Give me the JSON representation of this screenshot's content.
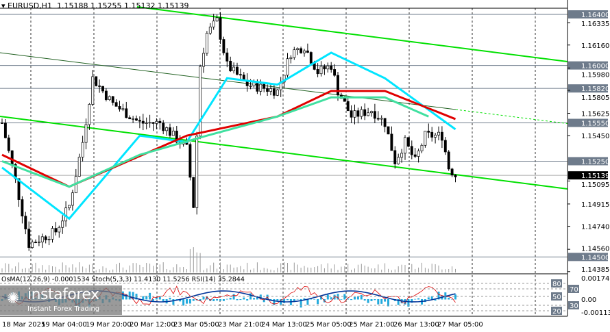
{
  "header": {
    "symbol": "EURUSD,H1",
    "open": "1.15188",
    "high": "1.15255",
    "low": "1.15132",
    "close": "1.15139"
  },
  "indicators_label": "OsMA(12,26,9) -0.0001534  Stoch(5,3,3) 11.4130 11.5256  RSI(14) 35.2844",
  "logo": {
    "name": "instaforex",
    "tagline": "Instant Forex Trading"
  },
  "colors": {
    "trendline": "#00e000",
    "ma_fast": "#00e5ff",
    "ma_slow": "#e00000",
    "ma_mid": "#40e0a0",
    "level_label_bg": "#6e7b8b",
    "price_label_bg": "#000000"
  },
  "chart_data": {
    "type": "candlestick",
    "timeframe": "H1",
    "ylim": [
      1.14385,
      1.164
    ],
    "price_ticks": [
      "1.16335",
      "1.16160",
      "1.15980",
      "1.15805",
      "1.15625",
      "1.15450",
      "1.15095",
      "1.14915",
      "1.14740",
      "1.14560",
      "1.14385"
    ],
    "levels": [
      "1.16400",
      "1.16000",
      "1.15820",
      "1.15550",
      "1.15250",
      "1.14500"
    ],
    "current_price": "1.15139",
    "time_labels": [
      "18 Mar 2025",
      "19 Mar 04:00",
      "19 Mar 20:00",
      "20 Mar 12:00",
      "23 Mar 05:00",
      "23 Mar 21:00",
      "24 Mar 13:00",
      "25 Mar 05:00",
      "25 Mar 21:00",
      "26 Mar 13:00",
      "27 Mar 05:00"
    ],
    "price_path": [
      [
        0,
        1.1555
      ],
      [
        4,
        1.151
      ],
      [
        8,
        1.146
      ],
      [
        16,
        1.147
      ],
      [
        20,
        1.149
      ],
      [
        24,
        1.154
      ],
      [
        27,
        1.159
      ],
      [
        33,
        1.157
      ],
      [
        41,
        1.1555
      ],
      [
        47,
        1.1555
      ],
      [
        55,
        1.1535
      ],
      [
        57,
        1.149
      ],
      [
        59,
        1.16
      ],
      [
        61,
        1.1625
      ],
      [
        64,
        1.1635
      ],
      [
        67,
        1.16
      ],
      [
        73,
        1.1585
      ],
      [
        82,
        1.158
      ],
      [
        86,
        1.161
      ],
      [
        90,
        1.1615
      ],
      [
        94,
        1.1595
      ],
      [
        98,
        1.16
      ],
      [
        100,
        1.158
      ],
      [
        104,
        1.156
      ],
      [
        110,
        1.1565
      ],
      [
        114,
        1.1555
      ],
      [
        117,
        1.1525
      ],
      [
        120,
        1.154
      ],
      [
        123,
        1.1525
      ],
      [
        126,
        1.1545
      ],
      [
        131,
        1.1545
      ],
      [
        133,
        1.152
      ],
      [
        135,
        1.15139
      ]
    ],
    "ma_fast": [
      [
        0,
        1.152
      ],
      [
        20,
        1.148
      ],
      [
        41,
        1.1545
      ],
      [
        55,
        1.154
      ],
      [
        67,
        1.159
      ],
      [
        82,
        1.1585
      ],
      [
        98,
        1.161
      ],
      [
        114,
        1.159
      ],
      [
        135,
        1.155
      ]
    ],
    "ma_slow": [
      [
        0,
        1.153
      ],
      [
        20,
        1.1505
      ],
      [
        55,
        1.1545
      ],
      [
        82,
        1.156
      ],
      [
        98,
        1.158
      ],
      [
        114,
        1.158
      ],
      [
        135,
        1.1558
      ]
    ],
    "ma_mid": [
      [
        0,
        1.1525
      ],
      [
        20,
        1.1505
      ],
      [
        41,
        1.153
      ],
      [
        61,
        1.1545
      ],
      [
        82,
        1.156
      ],
      [
        98,
        1.1575
      ],
      [
        114,
        1.1575
      ],
      [
        127,
        1.156
      ]
    ],
    "indicator_levels": [
      "80",
      "70",
      "50",
      "30",
      "20"
    ],
    "osma_ticks": [
      "0.0017407",
      "0.00",
      "-0.001135"
    ]
  }
}
